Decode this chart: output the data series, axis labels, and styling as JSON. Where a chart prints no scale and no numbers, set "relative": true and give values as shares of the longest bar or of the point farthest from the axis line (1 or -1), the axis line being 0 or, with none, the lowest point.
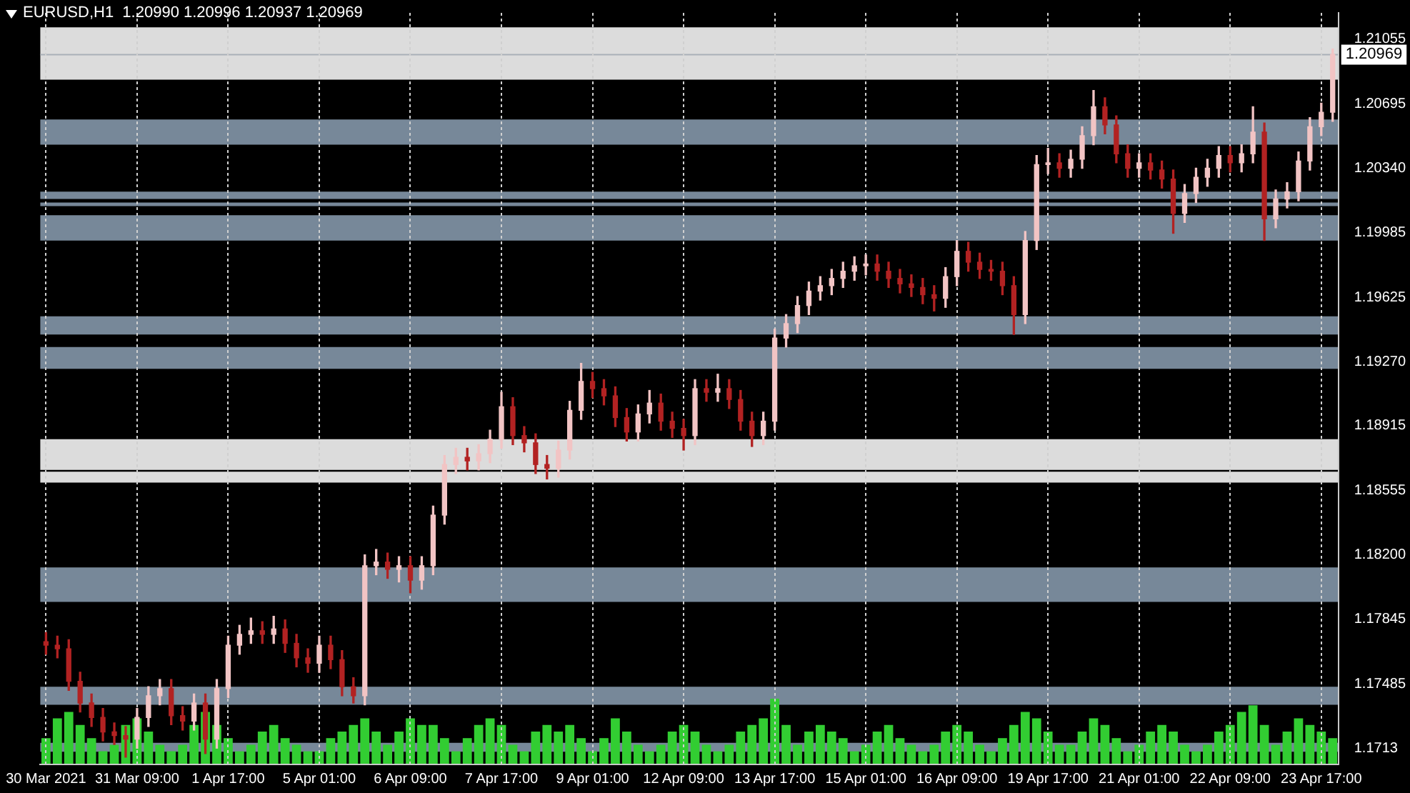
{
  "chart_data": [
    {
      "type": "candlestick",
      "title": "EURUSD,H1  1.20990 1.20996 1.20937 1.20969",
      "categories": [
        "30 Mar 2021",
        null,
        null,
        null,
        null,
        null,
        null,
        null,
        "31 Mar 09:00",
        null,
        null,
        null,
        null,
        null,
        null,
        null,
        "1 Apr 17:00",
        null,
        null,
        null,
        null,
        null,
        null,
        null,
        "5 Apr 01:00",
        null,
        null,
        null,
        null,
        null,
        null,
        null,
        "6 Apr 09:00",
        null,
        null,
        null,
        null,
        null,
        null,
        null,
        "7 Apr 17:00",
        null,
        null,
        null,
        null,
        null,
        null,
        null,
        "9 Apr 01:00",
        null,
        null,
        null,
        null,
        null,
        null,
        null,
        "12 Apr 09:00",
        null,
        null,
        null,
        null,
        null,
        null,
        null,
        "13 Apr 17:00",
        null,
        null,
        null,
        null,
        null,
        null,
        null,
        "15 Apr 01:00",
        null,
        null,
        null,
        null,
        null,
        null,
        null,
        "16 Apr 09:00",
        null,
        null,
        null,
        null,
        null,
        null,
        null,
        "19 Apr 17:00",
        null,
        null,
        null,
        null,
        null,
        null,
        null,
        "21 Apr 01:00",
        null,
        null,
        null,
        null,
        null,
        null,
        null,
        "22 Apr 09:00",
        null,
        null,
        null,
        null,
        null,
        null,
        null,
        "23 Apr 17:00",
        null
      ],
      "ohlc": [
        [
          1.1772,
          1.1777,
          1.1765,
          1.177
        ],
        [
          1.177,
          1.1775,
          1.1763,
          1.1768
        ],
        [
          1.1768,
          1.1773,
          1.1745,
          1.175
        ],
        [
          1.175,
          1.1755,
          1.1733,
          1.1738
        ],
        [
          1.1738,
          1.1743,
          1.1725,
          1.173
        ],
        [
          1.173,
          1.1735,
          1.1717,
          1.1722
        ],
        [
          1.1722,
          1.1727,
          1.1715,
          1.172
        ],
        [
          1.172,
          1.1725,
          1.1708,
          1.1718
        ],
        [
          1.1718,
          1.1735,
          1.1713,
          1.173
        ],
        [
          1.173,
          1.1747,
          1.1725,
          1.1742
        ],
        [
          1.1742,
          1.1751,
          1.1737,
          1.1746
        ],
        [
          1.1746,
          1.1751,
          1.1726,
          1.1731
        ],
        [
          1.1731,
          1.1736,
          1.1723,
          1.1728
        ],
        [
          1.1728,
          1.1743,
          1.1723,
          1.1738
        ],
        [
          1.1738,
          1.1743,
          1.171,
          1.1718
        ],
        [
          1.1718,
          1.1751,
          1.1713,
          1.1746
        ],
        [
          1.1746,
          1.1775,
          1.1741,
          1.177
        ],
        [
          1.177,
          1.1781,
          1.1765,
          1.1776
        ],
        [
          1.1776,
          1.1785,
          1.1771,
          1.1778
        ],
        [
          1.1778,
          1.1783,
          1.1771,
          1.1776
        ],
        [
          1.1776,
          1.1786,
          1.1771,
          1.1779
        ],
        [
          1.1779,
          1.1784,
          1.1766,
          1.1771
        ],
        [
          1.1771,
          1.1776,
          1.1758,
          1.1763
        ],
        [
          1.1763,
          1.1768,
          1.1755,
          1.176
        ],
        [
          1.176,
          1.1775,
          1.1755,
          1.177
        ],
        [
          1.177,
          1.1775,
          1.1757,
          1.1762
        ],
        [
          1.1762,
          1.1767,
          1.1742,
          1.1747
        ],
        [
          1.1747,
          1.1752,
          1.1738,
          1.1742
        ],
        [
          1.1742,
          1.182,
          1.1737,
          1.1814
        ],
        [
          1.1814,
          1.1823,
          1.1809,
          1.1816
        ],
        [
          1.1816,
          1.1821,
          1.1807,
          1.1812
        ],
        [
          1.1812,
          1.1819,
          1.1805,
          1.1814
        ],
        [
          1.1814,
          1.1819,
          1.1799,
          1.1806
        ],
        [
          1.1806,
          1.1819,
          1.1801,
          1.1814
        ],
        [
          1.1814,
          1.1847,
          1.1809,
          1.1842
        ],
        [
          1.1842,
          1.1875,
          1.1837,
          1.187
        ],
        [
          1.187,
          1.1879,
          1.1865,
          1.1874
        ],
        [
          1.1874,
          1.1879,
          1.1867,
          1.1872
        ],
        [
          1.1872,
          1.1881,
          1.1867,
          1.1876
        ],
        [
          1.1876,
          1.1889,
          1.1871,
          1.1884
        ],
        [
          1.1884,
          1.191,
          1.1879,
          1.1902
        ],
        [
          1.1902,
          1.1907,
          1.1881,
          1.1886
        ],
        [
          1.1886,
          1.1891,
          1.1877,
          1.1882
        ],
        [
          1.1882,
          1.1887,
          1.1865,
          1.187
        ],
        [
          1.187,
          1.1875,
          1.1862,
          1.1868
        ],
        [
          1.1868,
          1.1883,
          1.1863,
          1.1878
        ],
        [
          1.1878,
          1.1905,
          1.1873,
          1.19
        ],
        [
          1.19,
          1.1926,
          1.1895,
          1.1916
        ],
        [
          1.1916,
          1.1921,
          1.1907,
          1.1912
        ],
        [
          1.1912,
          1.1917,
          1.1903,
          1.1908
        ],
        [
          1.1908,
          1.1913,
          1.1891,
          1.1896
        ],
        [
          1.1896,
          1.1901,
          1.1883,
          1.1888
        ],
        [
          1.1888,
          1.1903,
          1.1883,
          1.1898
        ],
        [
          1.1898,
          1.1911,
          1.1893,
          1.1904
        ],
        [
          1.1904,
          1.1909,
          1.1889,
          1.1894
        ],
        [
          1.1894,
          1.1899,
          1.1885,
          1.189
        ],
        [
          1.189,
          1.1895,
          1.1878,
          1.1886
        ],
        [
          1.1886,
          1.1917,
          1.1881,
          1.1912
        ],
        [
          1.1912,
          1.1917,
          1.1905,
          1.191
        ],
        [
          1.191,
          1.192,
          1.1905,
          1.1912
        ],
        [
          1.1912,
          1.1917,
          1.1901,
          1.1906
        ],
        [
          1.1906,
          1.1911,
          1.1889,
          1.1894
        ],
        [
          1.1894,
          1.1899,
          1.188,
          1.1886
        ],
        [
          1.1886,
          1.1899,
          1.1881,
          1.1894
        ],
        [
          1.1894,
          1.1945,
          1.1889,
          1.194
        ],
        [
          1.194,
          1.1953,
          1.1935,
          1.1948
        ],
        [
          1.1948,
          1.1963,
          1.1943,
          1.1958
        ],
        [
          1.1958,
          1.1971,
          1.1953,
          1.1966
        ],
        [
          1.1966,
          1.1974,
          1.1961,
          1.1969
        ],
        [
          1.1969,
          1.1978,
          1.1964,
          1.1973
        ],
        [
          1.1973,
          1.1982,
          1.1968,
          1.1977
        ],
        [
          1.1977,
          1.1985,
          1.1972,
          1.198
        ],
        [
          1.198,
          1.1986,
          1.1975,
          1.1981
        ],
        [
          1.1981,
          1.1986,
          1.1972,
          1.1977
        ],
        [
          1.1977,
          1.1982,
          1.1968,
          1.1973
        ],
        [
          1.1973,
          1.1978,
          1.1965,
          1.197
        ],
        [
          1.197,
          1.1975,
          1.1963,
          1.1968
        ],
        [
          1.1968,
          1.1973,
          1.1959,
          1.1964
        ],
        [
          1.1964,
          1.1969,
          1.1955,
          1.1962
        ],
        [
          1.1962,
          1.1979,
          1.1957,
          1.1974
        ],
        [
          1.1974,
          1.1994,
          1.1969,
          1.1988
        ],
        [
          1.1988,
          1.1993,
          1.1977,
          1.1982
        ],
        [
          1.1982,
          1.1987,
          1.1973,
          1.1978
        ],
        [
          1.1978,
          1.1983,
          1.1972,
          1.1977
        ],
        [
          1.1977,
          1.1982,
          1.1964,
          1.1969
        ],
        [
          1.1969,
          1.1974,
          1.1942,
          1.1953
        ],
        [
          1.1953,
          1.1999,
          1.1948,
          1.1994
        ],
        [
          1.1994,
          1.2041,
          1.1989,
          1.2036
        ],
        [
          1.2036,
          1.2045,
          1.2031,
          1.2037
        ],
        [
          1.2037,
          1.2042,
          1.2029,
          1.2034
        ],
        [
          1.2034,
          1.2044,
          1.2029,
          1.2039
        ],
        [
          1.2039,
          1.2057,
          1.2034,
          1.2052
        ],
        [
          1.2052,
          1.2077,
          1.2047,
          1.2068
        ],
        [
          1.2068,
          1.2073,
          1.2053,
          1.2058
        ],
        [
          1.2058,
          1.2063,
          1.2037,
          1.2042
        ],
        [
          1.2042,
          1.2047,
          1.2029,
          1.2034
        ],
        [
          1.2034,
          1.2042,
          1.2029,
          1.2037
        ],
        [
          1.2037,
          1.2042,
          1.2028,
          1.2033
        ],
        [
          1.2033,
          1.2038,
          1.2023,
          1.2028
        ],
        [
          1.2028,
          1.2033,
          1.1998,
          1.2009
        ],
        [
          1.2009,
          1.2025,
          1.2004,
          1.202
        ],
        [
          1.202,
          1.2034,
          1.2015,
          1.2029
        ],
        [
          1.2029,
          1.2039,
          1.2024,
          1.2034
        ],
        [
          1.2034,
          1.2046,
          1.2029,
          1.2041
        ],
        [
          1.2041,
          1.2046,
          1.2032,
          1.2037
        ],
        [
          1.2037,
          1.2047,
          1.2032,
          1.2042
        ],
        [
          1.2042,
          1.2068,
          1.2037,
          1.2054
        ],
        [
          1.2054,
          1.2059,
          1.1994,
          1.2006
        ],
        [
          1.2006,
          1.2022,
          1.2001,
          1.2017
        ],
        [
          1.2017,
          1.2026,
          1.2012,
          1.2021
        ],
        [
          1.2021,
          1.2043,
          1.2016,
          1.2038
        ],
        [
          1.2038,
          1.2062,
          1.2033,
          1.2057
        ],
        [
          1.2057,
          1.207,
          1.2052,
          1.2065
        ],
        [
          1.2065,
          1.21,
          1.206,
          1.2097
        ]
      ],
      "ylim": [
        1.1704,
        1.212
      ],
      "yticks": [
        1.1713,
        1.17485,
        1.17845,
        {
          "value": 1.182,
          "label": "1.18200"
        },
        1.18555,
        1.18915,
        {
          "value": 1.1927,
          "label": "1.19270"
        },
        1.19625,
        1.19985,
        {
          "value": 1.2034,
          "label": "1.20340"
        },
        1.20695,
        1.21055
      ],
      "grid": "x",
      "legend": false,
      "bands": [
        {
          "axis": "y",
          "from": 1.2083,
          "to": 1.2112,
          "color": "#dcdcdc"
        },
        {
          "axis": "y",
          "from": 1.1867,
          "to": 1.1884,
          "color": "#dcdcdc"
        },
        {
          "axis": "y",
          "from": 1.186,
          "to": 1.1866,
          "color": "#dcdcdc"
        },
        {
          "axis": "y",
          "from": 1.2047,
          "to": 1.2061,
          "color": "#778899"
        },
        {
          "axis": "y",
          "from": 1.2017,
          "to": 1.2021,
          "color": "#778899"
        },
        {
          "axis": "y",
          "from": 1.2013,
          "to": 1.2015,
          "color": "#778899"
        },
        {
          "axis": "y",
          "from": 1.1994,
          "to": 1.2008,
          "color": "#778899"
        },
        {
          "axis": "y",
          "from": 1.1942,
          "to": 1.1952,
          "color": "#778899"
        },
        {
          "axis": "y",
          "from": 1.1923,
          "to": 1.1935,
          "color": "#778899"
        },
        {
          "axis": "y",
          "from": 1.1794,
          "to": 1.1813,
          "color": "#778899"
        },
        {
          "axis": "y",
          "from": 1.1737,
          "to": 1.1747,
          "color": "#778899"
        },
        {
          "axis": "y",
          "from": 1.1711,
          "to": 1.1716,
          "color": "#778899"
        }
      ],
      "ref_lines": [
        {
          "axis": "y",
          "value": 1.20969,
          "label": "1.20969",
          "color": "#a9b0b8"
        }
      ]
    },
    {
      "type": "bar",
      "relative": true,
      "legend": false,
      "categories": [
        null,
        null,
        null,
        null,
        null,
        null,
        null,
        null,
        null,
        null,
        null,
        null,
        null,
        null,
        null,
        null,
        null,
        null,
        null,
        null,
        null,
        null,
        null,
        null,
        null,
        null,
        null,
        null,
        null,
        null,
        null,
        null,
        null,
        null,
        null,
        null,
        null,
        null,
        null,
        null,
        null,
        null,
        null,
        null,
        null,
        null,
        null,
        null,
        null,
        null,
        null,
        null,
        null,
        null,
        null,
        null,
        null,
        null,
        null,
        null,
        null,
        null,
        null,
        null,
        null,
        null,
        null,
        null,
        null,
        null,
        null,
        null,
        null,
        null,
        null,
        null,
        null,
        null,
        null,
        null,
        null,
        null,
        null,
        null,
        null,
        null,
        null,
        null,
        null,
        null,
        null,
        null,
        null,
        null,
        null,
        null,
        null,
        null,
        null,
        null,
        null,
        null,
        null,
        null,
        null,
        null,
        null,
        null,
        null,
        null,
        null,
        null,
        null,
        null
      ],
      "series": [
        {
          "color": "#32cd32",
          "values": [
            0.4,
            0.7,
            0.8,
            0.6,
            0.4,
            0.2,
            0.3,
            0.6,
            0.7,
            0.5,
            0.3,
            0.2,
            0.3,
            0.6,
            0.8,
            0.6,
            0.4,
            0.2,
            0.3,
            0.5,
            0.6,
            0.4,
            0.3,
            0.2,
            0.2,
            0.4,
            0.5,
            0.6,
            0.7,
            0.5,
            0.3,
            0.5,
            0.7,
            0.6,
            0.6,
            0.4,
            0.2,
            0.4,
            0.6,
            0.7,
            0.6,
            0.3,
            0.2,
            0.5,
            0.6,
            0.5,
            0.6,
            0.4,
            0.2,
            0.4,
            0.7,
            0.5,
            0.3,
            0.2,
            0.3,
            0.5,
            0.6,
            0.5,
            0.3,
            0.2,
            0.3,
            0.5,
            0.6,
            0.7,
            1,
            0.6,
            0.3,
            0.5,
            0.6,
            0.5,
            0.4,
            0.2,
            0.3,
            0.5,
            0.6,
            0.4,
            0.3,
            0.2,
            0.3,
            0.5,
            0.6,
            0.5,
            0.3,
            0.2,
            0.4,
            0.6,
            0.8,
            0.7,
            0.5,
            0.3,
            0.3,
            0.5,
            0.7,
            0.6,
            0.4,
            0.2,
            0.3,
            0.5,
            0.6,
            0.5,
            0.3,
            0.2,
            0.3,
            0.5,
            0.6,
            0.8,
            0.9,
            0.6,
            0.3,
            0.5,
            0.7,
            0.6,
            0.5,
            0.4
          ]
        }
      ]
    }
  ]
}
